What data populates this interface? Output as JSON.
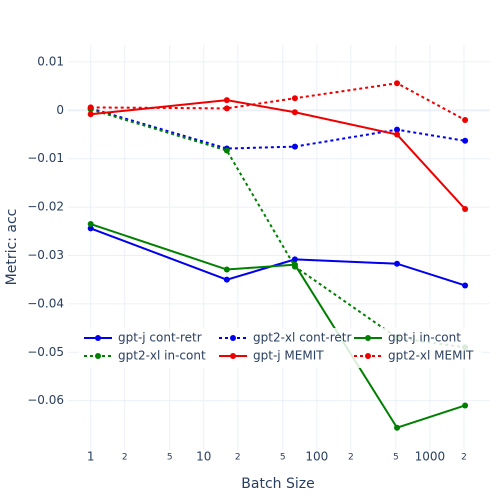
{
  "chart_data": {
    "type": "line",
    "xlabel": "Batch Size",
    "ylabel": "Metric: acc",
    "xscale": "log",
    "grid": true,
    "legend": "bottom",
    "x": [
      1,
      16,
      64,
      512,
      2048
    ],
    "xlim": [
      0.63,
      3400
    ],
    "xticks": [
      1,
      {
        "value": 2,
        "label": "2"
      },
      {
        "value": 5,
        "label": "5"
      },
      10,
      {
        "value": 20,
        "label": "2"
      },
      {
        "value": 50,
        "label": "5"
      },
      100,
      {
        "value": 200,
        "label": "2"
      },
      {
        "value": 500,
        "label": "5"
      },
      1000,
      {
        "value": 2000,
        "label": "2"
      }
    ],
    "ylim": [
      -0.0702,
      0.0135
    ],
    "yticks": [
      0.01,
      0,
      {
        "value": -0.01,
        "label": "−0.01"
      },
      {
        "value": -0.02,
        "label": "−0.02"
      },
      {
        "value": -0.03,
        "label": "−0.03"
      },
      {
        "value": -0.04,
        "label": "−0.04"
      },
      {
        "value": -0.05,
        "label": "−0.05"
      },
      {
        "value": -0.06,
        "label": "−0.06"
      }
    ],
    "series": [
      {
        "name": "gpt-j cont-retr",
        "color": "#0000ee",
        "dash": "solid",
        "values": [
          -0.0244,
          -0.035,
          -0.0308,
          -0.0317,
          -0.0362
        ]
      },
      {
        "name": "gpt2-xl cont-retr",
        "color": "#0000ee",
        "dash": "dot",
        "values": [
          0.0004,
          -0.0079,
          -0.0075,
          -0.004,
          -0.0063
        ]
      },
      {
        "name": "gpt-j in-cont",
        "color": "#008000",
        "dash": "solid",
        "values": [
          -0.0235,
          -0.0329,
          -0.0319,
          -0.0656,
          -0.061
        ]
      },
      {
        "name": "gpt2-xl in-cont",
        "color": "#008000",
        "dash": "dot",
        "values": [
          0.0002,
          -0.0083,
          -0.0323,
          -0.047,
          -0.049
        ]
      },
      {
        "name": "gpt-j MEMIT",
        "color": "#ee0000",
        "dash": "solid",
        "values": [
          -0.0008,
          0.0021,
          -0.0004,
          -0.005,
          -0.0204
        ]
      },
      {
        "name": "gpt2-xl MEMIT",
        "color": "#ee0000",
        "dash": "dot",
        "values": [
          0.0006,
          0.0004,
          0.0025,
          0.0056,
          -0.002
        ]
      }
    ]
  }
}
